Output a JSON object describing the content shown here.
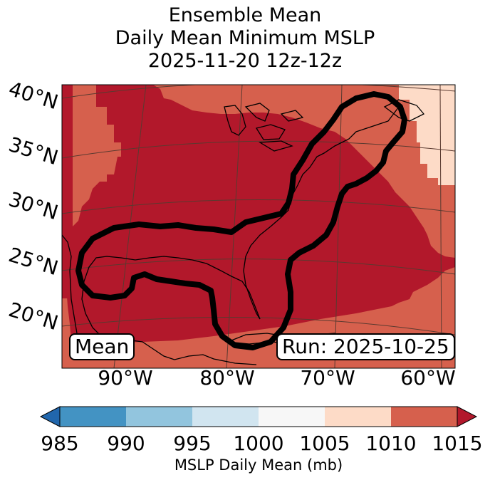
{
  "title": {
    "line1": "Ensemble Mean",
    "line2": "Daily Mean Minimum MSLP",
    "line3": "2025-11-20 12z-12z"
  },
  "labels": {
    "mean": "Mean",
    "run": "Run: 2025-10-25"
  },
  "lat_labels": [
    "40°N",
    "35°N",
    "30°N",
    "25°N",
    "20°N"
  ],
  "lon_labels": [
    "90°W",
    "80°W",
    "70°W",
    "60°W"
  ],
  "colorbar": {
    "label": "MSLP Daily Mean (mb)",
    "ticks": [
      "985",
      "990",
      "995",
      "1000",
      "1005",
      "1010",
      "1015"
    ],
    "bins": [
      {
        "range": "<985",
        "color": "#2166ac"
      },
      {
        "range": "985-990",
        "color": "#4393c3"
      },
      {
        "range": "990-995",
        "color": "#92c5de"
      },
      {
        "range": "995-1000",
        "color": "#d1e5f0"
      },
      {
        "range": "1000-1005",
        "color": "#f7f7f7"
      },
      {
        "range": "1005-1010",
        "color": "#fddbc7"
      },
      {
        "range": "1010-1015",
        "color": "#d6604d"
      },
      {
        "range": ">1015",
        "color": "#b2182b"
      }
    ]
  },
  "map_colors": {
    "high": "#b2182b",
    "mid": "#d6604d",
    "low": "#fddbc7",
    "contour": "#000000",
    "coast": "#000000",
    "grid": "#5a3a30"
  }
}
